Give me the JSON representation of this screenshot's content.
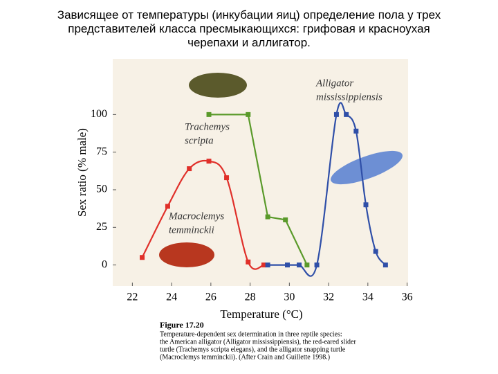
{
  "header": {
    "title_lines": [
      "Зависящее от температуры (инкубации яиц) определение пола у трех",
      "представителей класса  пресмыкающихся: грифовая и красноухая",
      "черепахи и аллигатор."
    ]
  },
  "chart_data": {
    "type": "line",
    "ylabel": "Sex ratio (% male)",
    "xlabel": "Temperature (°C)",
    "xlim": [
      21,
      36.05
    ],
    "ylim": [
      -14,
      137
    ],
    "xticks": [
      22,
      24,
      26,
      28,
      30,
      32,
      34,
      36
    ],
    "yticks": [
      0,
      25,
      50,
      75,
      100
    ],
    "series": [
      {
        "color": "#e0302a",
        "smooth": true,
        "x": [
          22.5,
          23.8,
          24.9,
          25.9,
          26.8,
          27.9,
          28.7
        ],
        "values": [
          5,
          39,
          64,
          69,
          58,
          2,
          0
        ]
      },
      {
        "color": "#5a9a2a",
        "smooth": false,
        "x": [
          25.9,
          27.9,
          28.9,
          29.8,
          30.9
        ],
        "values": [
          100,
          100,
          32,
          30,
          0
        ]
      },
      {
        "color": "#2f4fa8",
        "smooth": true,
        "x": [
          28.9,
          29.9,
          30.5,
          31.4,
          32.4,
          32.9,
          33.4,
          33.9,
          34.4,
          34.9
        ],
        "values": [
          0,
          0,
          0,
          0,
          100,
          100,
          89,
          40,
          9,
          0
        ]
      }
    ],
    "annotations": [
      [
        "Alligator",
        "mississippiensis"
      ],
      [
        "Trachemys",
        "scripta"
      ],
      [
        "Macroclemys",
        "temminckii"
      ]
    ],
    "caption": {
      "label": "Figure 17.20",
      "lines": [
        "Temperature-dependent sex determination in three reptile species:",
        "the American alligator (Alligator mississippiensis), the red-eared slider",
        "turtle (Trachemys scripta elegans), and the alligator snapping turtle",
        "(Macroclemys temminckii). (After Crain and Guillette 1998.)"
      ]
    }
  }
}
